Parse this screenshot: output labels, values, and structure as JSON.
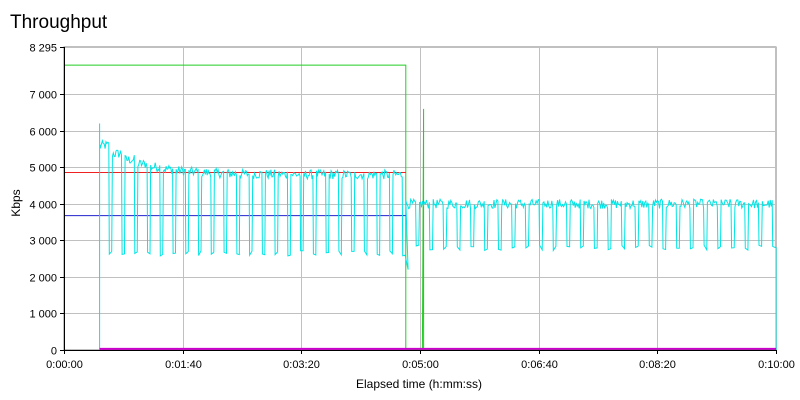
{
  "chart_data": {
    "type": "line",
    "title": "Throughput",
    "xlabel": "Elapsed time (h:mm:ss)",
    "ylabel": "Kbps",
    "xlim": [
      "0:00:00",
      "0:10:00"
    ],
    "ylim": [
      0,
      8295
    ],
    "x_tick_labels": [
      "0:00:00",
      "0:01:40",
      "0:03:20",
      "0:05:00",
      "0:06:40",
      "0:08:20",
      "0:10:00"
    ],
    "y_tick_labels": [
      "0",
      "1 000",
      "2 000",
      "3 000",
      "4 000",
      "5 000",
      "6 000",
      "7 000",
      "8 295"
    ],
    "grid": true,
    "series": [
      {
        "color": "#22cc22",
        "points": [
          [
            "0:00:00",
            7800
          ],
          [
            "0:04:48",
            7800
          ],
          [
            "0:04:48",
            0
          ],
          [
            "0:05:02",
            0
          ],
          [
            "0:05:03",
            6600
          ],
          [
            "0:05:03",
            0
          ],
          [
            "0:10:00",
            0
          ]
        ]
      },
      {
        "color": "#ee2222",
        "points": [
          [
            "0:00:00",
            4860
          ],
          [
            "0:04:48",
            4860
          ]
        ]
      },
      {
        "color": "#2222cc",
        "points": [
          [
            "0:00:00",
            3680
          ],
          [
            "0:04:48",
            3680
          ]
        ]
      },
      {
        "color": "#00e5e5",
        "description_pattern": "square-wave oscillation",
        "start": "0:00:30",
        "phase1": {
          "from": "0:00:30",
          "to": "0:04:48",
          "high_start": 5600,
          "high": 4800,
          "low": 2650,
          "cycles": 24
        },
        "phase2": {
          "from": "0:04:48",
          "to": "0:10:00",
          "high": 4000,
          "low": 2800,
          "cycles": 27
        },
        "end": "0:10:00"
      },
      {
        "color": "#cc00cc",
        "points": [
          [
            "0:00:30",
            30
          ],
          [
            "0:10:00",
            30
          ]
        ]
      }
    ]
  }
}
